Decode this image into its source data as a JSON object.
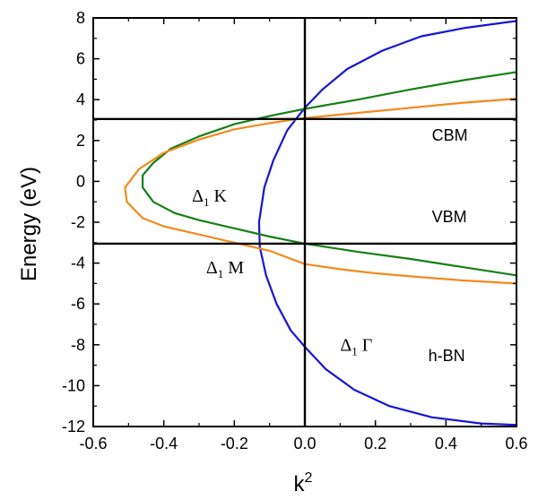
{
  "chart_data": {
    "type": "line",
    "title": "",
    "xlabel": "k",
    "xlabel_sup": "2",
    "ylabel": "Energy (eV)",
    "xlim": [
      -0.6,
      0.6
    ],
    "ylim": [
      -12,
      8
    ],
    "xticks": [
      "-0.6",
      "-0.4",
      "-0.2",
      "0.0",
      "0.2",
      "0.4",
      "0.6"
    ],
    "yticks": [
      "8",
      "6",
      "4",
      "2",
      "0",
      "-2",
      "-4",
      "-6",
      "-8",
      "-10",
      "-12"
    ],
    "grid": false,
    "reference_lines": {
      "horizontal": [
        {
          "y": 3.05,
          "label": "CBM"
        },
        {
          "y": -3.05,
          "label": "VBM"
        }
      ],
      "vertical": [
        {
          "x": 0.0
        }
      ]
    },
    "series": [
      {
        "color": "#1515d6",
        "points": [
          [
            0.6,
            7.85
          ],
          [
            0.45,
            7.5
          ],
          [
            0.33,
            7.1
          ],
          [
            0.22,
            6.4
          ],
          [
            0.12,
            5.5
          ],
          [
            0.05,
            4.5
          ],
          [
            0.0,
            3.6
          ],
          [
            -0.05,
            2.5
          ],
          [
            -0.09,
            1.0
          ],
          [
            -0.115,
            -0.3
          ],
          [
            -0.13,
            -2.0
          ],
          [
            -0.128,
            -3.2
          ],
          [
            -0.11,
            -4.6
          ],
          [
            -0.08,
            -6.0
          ],
          [
            -0.04,
            -7.3
          ],
          [
            0.0,
            -8.1
          ],
          [
            0.06,
            -9.2
          ],
          [
            0.14,
            -10.2
          ],
          [
            0.24,
            -11.0
          ],
          [
            0.36,
            -11.55
          ],
          [
            0.5,
            -11.85
          ],
          [
            0.6,
            -11.92
          ]
        ]
      },
      {
        "color": "#168016",
        "points": [
          [
            0.6,
            5.35
          ],
          [
            0.45,
            4.95
          ],
          [
            0.3,
            4.5
          ],
          [
            0.15,
            4.0
          ],
          [
            0.0,
            3.55
          ],
          [
            -0.1,
            3.2
          ],
          [
            -0.2,
            2.8
          ],
          [
            -0.3,
            2.2
          ],
          [
            -0.38,
            1.6
          ],
          [
            -0.43,
            0.9
          ],
          [
            -0.46,
            0.3
          ],
          [
            -0.46,
            -0.3
          ],
          [
            -0.43,
            -1.0
          ],
          [
            -0.37,
            -1.55
          ],
          [
            -0.3,
            -1.9
          ],
          [
            -0.2,
            -2.3
          ],
          [
            -0.1,
            -2.7
          ],
          [
            0.0,
            -3.05
          ],
          [
            0.15,
            -3.45
          ],
          [
            0.3,
            -3.8
          ],
          [
            0.45,
            -4.2
          ],
          [
            0.6,
            -4.6
          ]
        ]
      },
      {
        "color": "#f28a1c",
        "points": [
          [
            0.6,
            4.05
          ],
          [
            0.45,
            3.85
          ],
          [
            0.3,
            3.6
          ],
          [
            0.15,
            3.35
          ],
          [
            0.0,
            3.1
          ],
          [
            -0.1,
            2.85
          ],
          [
            -0.2,
            2.55
          ],
          [
            -0.3,
            2.05
          ],
          [
            -0.4,
            1.4
          ],
          [
            -0.47,
            0.6
          ],
          [
            -0.51,
            -0.3
          ],
          [
            -0.505,
            -1.0
          ],
          [
            -0.46,
            -1.8
          ],
          [
            -0.4,
            -2.2
          ],
          [
            -0.3,
            -2.6
          ],
          [
            -0.2,
            -3.0
          ],
          [
            -0.1,
            -3.4
          ],
          [
            0.0,
            -4.05
          ],
          [
            0.1,
            -4.3
          ],
          [
            0.2,
            -4.5
          ],
          [
            0.3,
            -4.65
          ],
          [
            0.45,
            -4.85
          ],
          [
            0.6,
            -5.0
          ]
        ]
      }
    ],
    "annotations": [
      {
        "id": "k",
        "symbol": "Δ",
        "sub": "1",
        "text": "K",
        "x": -0.32,
        "y": -1.0
      },
      {
        "id": "m",
        "symbol": "Δ",
        "sub": "1",
        "text": "M",
        "x": -0.28,
        "y": -4.5
      },
      {
        "id": "g",
        "symbol": "Δ",
        "sub": "1",
        "text": "Γ",
        "x": 0.1,
        "y": -8.3
      },
      {
        "id": "cbm",
        "text": "CBM",
        "x": 0.36,
        "y": 2.0
      },
      {
        "id": "vbm",
        "text": "VBM",
        "x": 0.36,
        "y": -2.0
      },
      {
        "id": "hbn",
        "text": "h-BN",
        "x": 0.35,
        "y": -8.8
      }
    ]
  }
}
